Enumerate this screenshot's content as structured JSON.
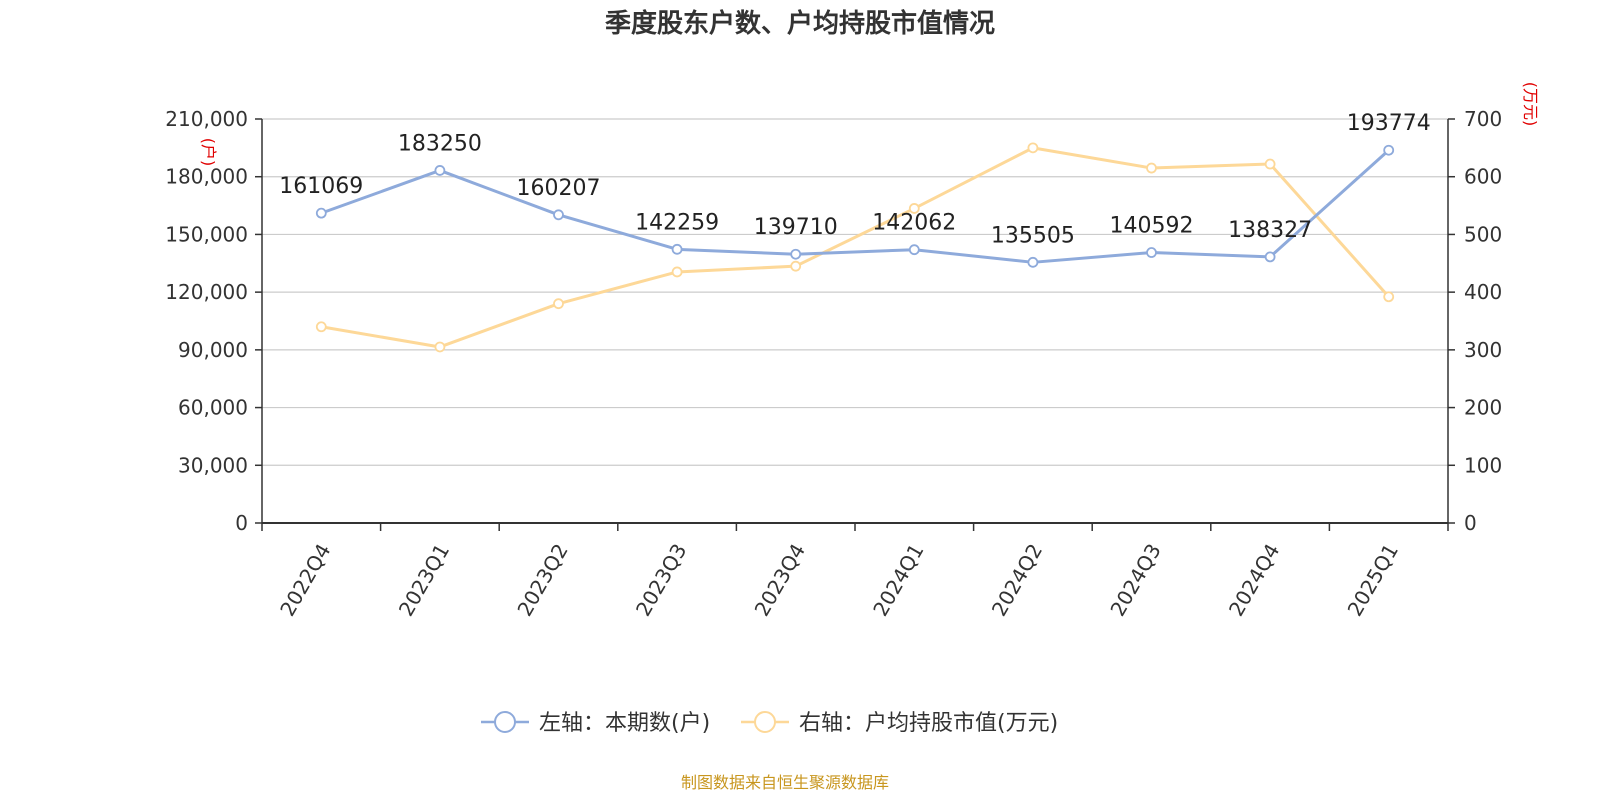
{
  "chart_data": {
    "type": "line",
    "title": "季度股东户数、户均持股市值情况",
    "categories": [
      "2022Q4",
      "2023Q1",
      "2023Q2",
      "2023Q3",
      "2023Q4",
      "2024Q1",
      "2024Q2",
      "2024Q3",
      "2024Q4",
      "2025Q1"
    ],
    "series": [
      {
        "name": "左轴：本期数(户)",
        "axis": "left",
        "color": "#8eaadb",
        "values": [
          161069,
          183250,
          160207,
          142259,
          139710,
          142062,
          135505,
          140592,
          138327,
          193774
        ],
        "labels": [
          "161069",
          "183250",
          "160207",
          "142259",
          "139710",
          "142062",
          "135505",
          "140592",
          "138327",
          "193774"
        ]
      },
      {
        "name": "右轴：户均持股市值(万元)",
        "axis": "right",
        "color": "#fdd898",
        "values": [
          340,
          305,
          380,
          435,
          445,
          545,
          650,
          615,
          622,
          392
        ]
      }
    ],
    "y_left": {
      "unit": "(户)",
      "ylim": [
        0,
        210000
      ],
      "ticks": [
        "0",
        "30,000",
        "60,000",
        "90,000",
        "120,000",
        "150,000",
        "180,000",
        "210,000"
      ],
      "tick_values": [
        0,
        30000,
        60000,
        90000,
        120000,
        150000,
        180000,
        210000
      ]
    },
    "y_right": {
      "unit": "(万元)",
      "ylim": [
        0,
        700
      ],
      "ticks": [
        "0",
        "100",
        "200",
        "300",
        "400",
        "500",
        "600",
        "700"
      ],
      "tick_values": [
        0,
        100,
        200,
        300,
        400,
        500,
        600,
        700
      ]
    },
    "grid": true,
    "legend_position": "bottom",
    "source": "制图数据来自恒生聚源数据库"
  }
}
